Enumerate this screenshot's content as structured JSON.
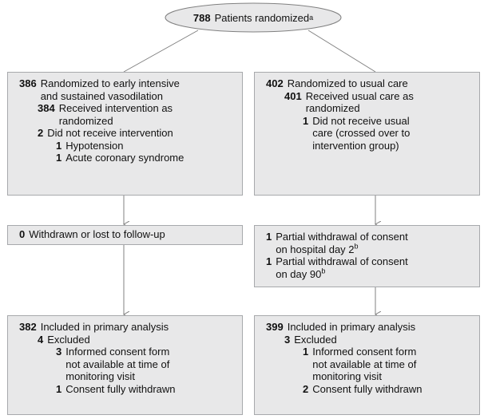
{
  "top": {
    "number": "788",
    "text": "Patients randomized",
    "superscript": "a"
  },
  "boxes": [
    {
      "items": [
        {
          "number": "386",
          "lines": [
            "Randomized to early intensive",
            "and sustained vasodilation"
          ]
        },
        {
          "number": "384",
          "lines": [
            "Received intervention as",
            "randomized"
          ]
        },
        {
          "number": "2",
          "lines": [
            "Did not receive intervention"
          ]
        },
        {
          "number": "1",
          "lines": [
            "Hypotension"
          ]
        },
        {
          "number": "1",
          "lines": [
            "Acute coronary syndrome"
          ]
        }
      ]
    },
    {
      "items": [
        {
          "number": "402",
          "lines": [
            "Randomized to usual care"
          ]
        },
        {
          "number": "401",
          "lines": [
            "Received usual care as",
            "randomized"
          ]
        },
        {
          "number": "1",
          "lines": [
            "Did not receive usual",
            "care (crossed over to",
            "intervention group)"
          ]
        }
      ]
    },
    {
      "items": [
        {
          "number": "0",
          "lines": [
            "Withdrawn or lost to follow-up"
          ]
        }
      ]
    },
    {
      "items": [
        {
          "number": "1",
          "lines": [
            "Partial withdrawal of consent",
            "on hospital day 2"
          ],
          "superscript": "b"
        },
        {
          "number": "1",
          "lines": [
            "Partial withdrawal of consent",
            "on day 90"
          ],
          "superscript": "b"
        }
      ]
    },
    {
      "items": [
        {
          "number": "382",
          "lines": [
            "Included in primary analysis"
          ]
        },
        {
          "number": "4",
          "lines": [
            "Excluded"
          ]
        },
        {
          "number": "3",
          "lines": [
            "Informed consent form",
            "not available at time of",
            "monitoring visit"
          ]
        },
        {
          "number": "1",
          "lines": [
            "Consent fully withdrawn"
          ]
        }
      ]
    },
    {
      "items": [
        {
          "number": "399",
          "lines": [
            "Included in primary analysis"
          ]
        },
        {
          "number": "3",
          "lines": [
            "Excluded"
          ]
        },
        {
          "number": "1",
          "lines": [
            "Informed consent form",
            "not available at time of",
            "monitoring visit"
          ]
        },
        {
          "number": "2",
          "lines": [
            "Consent fully withdrawn"
          ]
        }
      ]
    }
  ]
}
